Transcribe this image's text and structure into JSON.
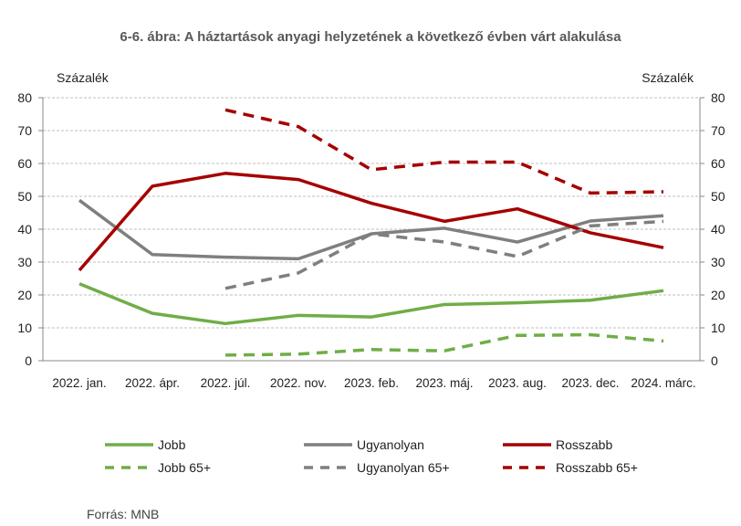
{
  "chart_data": {
    "type": "line",
    "title": "6-6. ábra: A háztartások anyagi helyzetének a következő évben várt alakulása",
    "ylabel_left": "Százalék",
    "ylabel_right": "Százalék",
    "ylim": [
      0,
      80
    ],
    "yticks": [
      0,
      10,
      20,
      30,
      40,
      50,
      60,
      70,
      80
    ],
    "grid": true,
    "legend_position": "bottom",
    "categories": [
      "2022. jan.",
      "2022. ápr.",
      "2022. júl.",
      "2022. nov.",
      "2023. feb.",
      "2023. máj.",
      "2023. aug.",
      "2023. dec.",
      "2024. márc."
    ],
    "series": [
      {
        "name": "Jobb",
        "color": "#70ad47",
        "dash": false,
        "values": [
          23.4,
          14.4,
          11.3,
          13.8,
          13.3,
          17.1,
          17.6,
          18.4,
          21.3
        ]
      },
      {
        "name": "Ugyanolyan",
        "color": "#7f7f7f",
        "dash": false,
        "values": [
          48.8,
          32.3,
          31.5,
          31.0,
          38.6,
          40.3,
          36.1,
          42.5,
          44.1
        ]
      },
      {
        "name": "Rosszabb",
        "color": "#a50000",
        "dash": false,
        "values": [
          27.5,
          53.1,
          57.0,
          55.1,
          47.9,
          42.4,
          46.2,
          38.9,
          34.4
        ]
      },
      {
        "name": "Jobb 65+",
        "color": "#70ad47",
        "dash": true,
        "values": [
          null,
          null,
          1.7,
          2.0,
          3.4,
          3.0,
          7.7,
          7.9,
          6.0
        ]
      },
      {
        "name": "Ugyanolyan 65+",
        "color": "#7f7f7f",
        "dash": true,
        "values": [
          null,
          null,
          22.0,
          26.7,
          38.6,
          36.1,
          31.7,
          41.0,
          42.4
        ]
      },
      {
        "name": "Rosszabb 65+",
        "color": "#a50000",
        "dash": true,
        "values": [
          null,
          null,
          76.3,
          71.2,
          58.1,
          60.4,
          60.4,
          51.0,
          51.4
        ]
      }
    ],
    "source": "Forrás: MNB"
  }
}
